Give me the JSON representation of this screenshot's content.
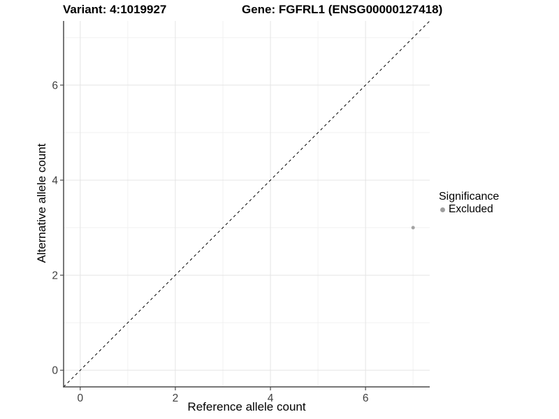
{
  "header": {
    "variant_title": "Variant: 4:1019927",
    "gene_title": "Gene: FGFRL1 (ENSG00000127418)"
  },
  "chart_data": {
    "type": "scatter",
    "title": "Variant: 4:1019927  /  Gene: FGFRL1 (ENSG00000127418)",
    "xlabel": "Reference allele count",
    "ylabel": "Alternative allele count",
    "xlim": [
      -0.35,
      7.35
    ],
    "ylim": [
      -0.35,
      7.35
    ],
    "x_ticks": [
      0,
      2,
      4,
      6
    ],
    "y_ticks": [
      0,
      2,
      4,
      6
    ],
    "x_tick_labels": [
      "0",
      "2",
      "4",
      "6"
    ],
    "y_tick_labels": [
      "0",
      "2",
      "4",
      "6"
    ],
    "x_minor_breaks": [
      1,
      3,
      5,
      7
    ],
    "y_minor_breaks": [
      1,
      3,
      5,
      7
    ],
    "grid": "on",
    "series": [
      {
        "name": "Excluded",
        "color": "#a3a3a3",
        "point_radius": 2.5,
        "points": [
          {
            "x": 7,
            "y": 3
          }
        ]
      }
    ],
    "reference_line": {
      "type": "identity",
      "style": "dashed",
      "from": -0.35,
      "to": 7.35,
      "color": "#000000"
    },
    "legend": {
      "title": "Significance",
      "position": "right",
      "items": [
        {
          "label": "Excluded",
          "color": "#9e9e9e"
        }
      ]
    },
    "colors": {
      "major_grid": "#e4e4e4",
      "minor_grid": "#f1f1f1",
      "axis": "#4a4a4a",
      "tick_label": "#404040",
      "background": "#ffffff"
    }
  }
}
